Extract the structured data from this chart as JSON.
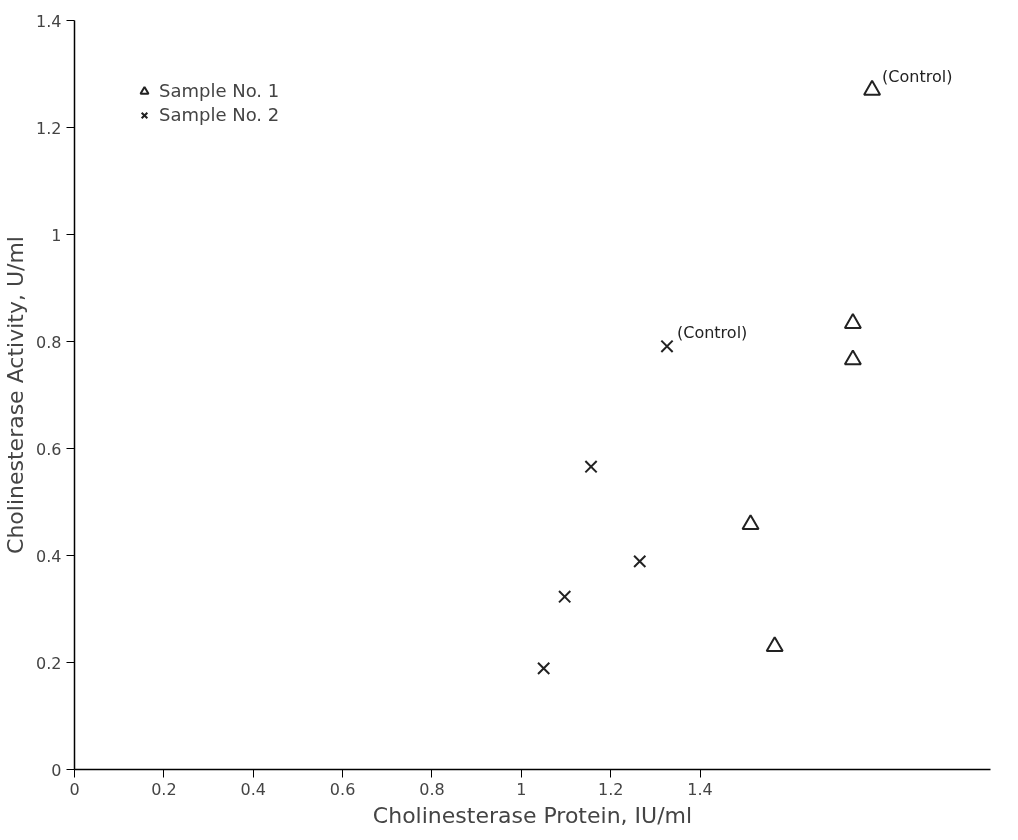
{
  "chart_data": {
    "type": "scatter",
    "xlabel": "Cholinesterase Protein, IU/ml",
    "ylabel": "Cholinesterase Activity, U/ml",
    "xlim": [
      0,
      2.05
    ],
    "ylim": [
      0,
      1.4
    ],
    "xticks": [
      0,
      0.2,
      0.4,
      0.6,
      0.8,
      1,
      1.2,
      1.4
    ],
    "yticks": [
      0,
      0.2,
      0.4,
      0.6,
      0.8,
      1,
      1.2,
      1.4
    ],
    "grid": false,
    "legend": "top left",
    "series": [
      {
        "name": "Sample No. 1",
        "color": "#222222",
        "marker": "triangle",
        "x": [
          1.785,
          1.742,
          1.742,
          1.513,
          1.567
        ],
        "values": [
          1.27,
          0.834,
          0.766,
          0.458,
          0.23
        ]
      },
      {
        "name": "Sample No. 2",
        "color": "#222222",
        "marker": "cross",
        "x": [
          1.326,
          1.156,
          1.265,
          1.097,
          1.05
        ],
        "values": [
          0.791,
          0.566,
          0.389,
          0.323,
          0.189
        ]
      }
    ],
    "annotations": [
      {
        "text": "(Control)",
        "x": 1.785,
        "y": 1.27
      },
      {
        "text": "(Control)",
        "x": 1.326,
        "y": 0.791
      }
    ]
  }
}
